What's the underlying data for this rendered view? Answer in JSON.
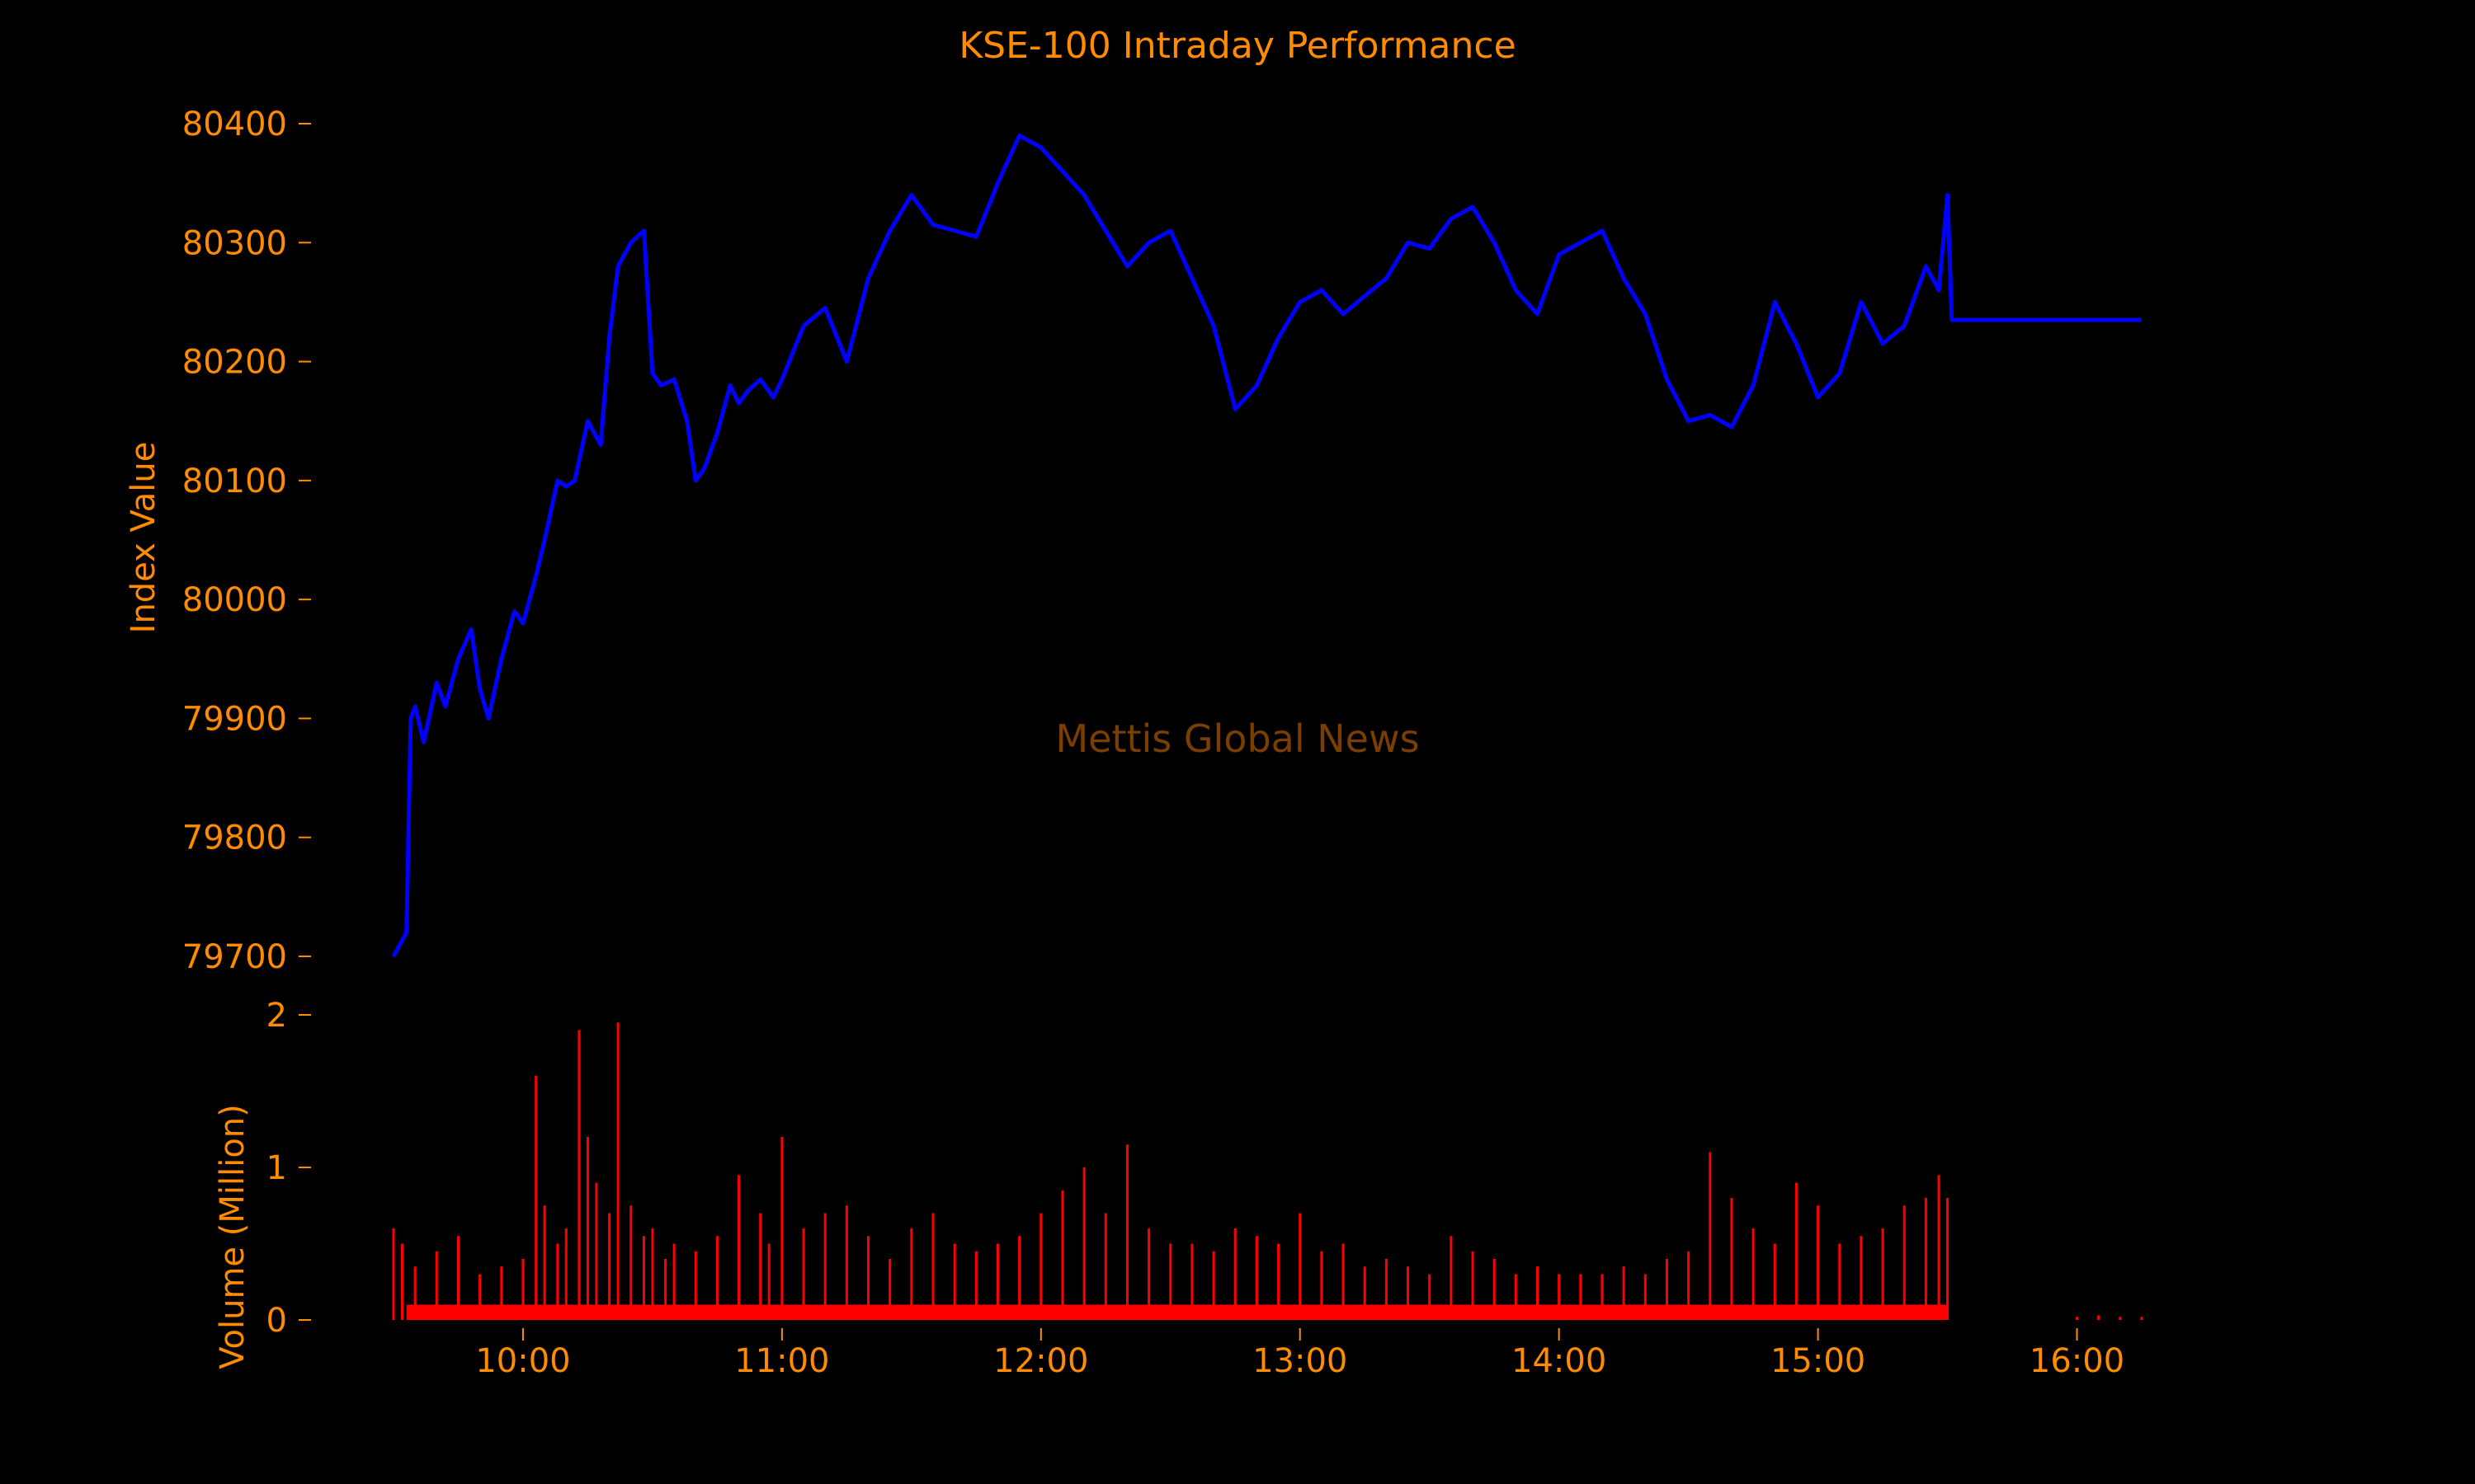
{
  "colors": {
    "background": "#000000",
    "text": "#ff8c00",
    "index_line": "#0000ff",
    "volume_bars": "#ff0000",
    "watermark": "#7a3e00"
  },
  "watermark": "Mettis Global News",
  "chart_data": [
    {
      "type": "line",
      "title": "KSE-100 Intraday Performance",
      "xlabel": "",
      "ylabel": "Index Value",
      "xlim": [
        "09:30",
        "16:15"
      ],
      "ylim": [
        79690,
        80410
      ],
      "yticks": [
        79700,
        79800,
        79900,
        80000,
        80100,
        80200,
        80300,
        80400
      ],
      "grid": false,
      "series": [
        {
          "x": [
            "09:30",
            "09:33",
            "09:34",
            "09:35",
            "09:37",
            "09:40",
            "09:42",
            "09:45",
            "09:48",
            "09:50",
            "09:52",
            "09:55",
            "09:58",
            "10:00",
            "10:03",
            "10:05",
            "10:08",
            "10:10",
            "10:12",
            "10:15",
            "10:18",
            "10:20",
            "10:22",
            "10:25",
            "10:28",
            "10:30",
            "10:32",
            "10:35",
            "10:38",
            "10:40",
            "10:42",
            "10:45",
            "10:48",
            "10:50",
            "10:52",
            "10:55",
            "10:58",
            "11:00",
            "11:05",
            "11:10",
            "11:15",
            "11:20",
            "11:25",
            "11:30",
            "11:35",
            "11:40",
            "11:45",
            "11:50",
            "11:55",
            "12:00",
            "12:05",
            "12:10",
            "12:15",
            "12:20",
            "12:25",
            "12:30",
            "12:35",
            "12:40",
            "12:45",
            "12:50",
            "12:55",
            "13:00",
            "13:05",
            "13:10",
            "13:15",
            "13:20",
            "13:25",
            "13:30",
            "13:35",
            "13:40",
            "13:45",
            "13:50",
            "13:55",
            "14:00",
            "14:05",
            "14:10",
            "14:15",
            "14:20",
            "14:25",
            "14:30",
            "14:35",
            "14:40",
            "14:45",
            "14:50",
            "14:55",
            "15:00",
            "15:05",
            "15:10",
            "15:15",
            "15:20",
            "15:25",
            "15:28",
            "15:30",
            "15:31",
            "15:40",
            "15:50",
            "16:00",
            "16:10",
            "16:15"
          ],
          "values": [
            79700,
            79720,
            79900,
            79910,
            79880,
            79930,
            79910,
            79950,
            79975,
            79925,
            79900,
            79950,
            79990,
            79980,
            80020,
            80050,
            80100,
            80095,
            80100,
            80150,
            80130,
            80220,
            80280,
            80300,
            80310,
            80190,
            80180,
            80185,
            80150,
            80100,
            80110,
            80140,
            80180,
            80165,
            80175,
            80185,
            80170,
            80185,
            80230,
            80245,
            80200,
            80270,
            80310,
            80340,
            80315,
            80310,
            80305,
            80350,
            80390,
            80380,
            80360,
            80340,
            80310,
            80280,
            80300,
            80310,
            80270,
            80230,
            80160,
            80180,
            80220,
            80250,
            80260,
            80240,
            80255,
            80270,
            80300,
            80295,
            80320,
            80330,
            80300,
            80260,
            80240,
            80290,
            80300,
            80310,
            80270,
            80240,
            80185,
            80150,
            80155,
            80145,
            80180,
            80250,
            80215,
            80170,
            80190,
            80250,
            80215,
            80230,
            80280,
            80260,
            80340,
            80235,
            80235,
            80235,
            80235,
            80235,
            80235
          ]
        }
      ]
    },
    {
      "type": "bar",
      "title": "",
      "xlabel": "",
      "ylabel": "Volume (Million)",
      "xlim": [
        "09:30",
        "16:15"
      ],
      "ylim": [
        0,
        2
      ],
      "yticks": [
        0,
        1,
        2
      ],
      "xticks": [
        "10:00",
        "11:00",
        "12:00",
        "13:00",
        "14:00",
        "15:00",
        "16:00"
      ],
      "grid": false,
      "series": [
        {
          "x": [
            "09:30",
            "09:32",
            "09:35",
            "09:40",
            "09:45",
            "09:50",
            "09:55",
            "10:00",
            "10:03",
            "10:05",
            "10:08",
            "10:10",
            "10:13",
            "10:15",
            "10:17",
            "10:20",
            "10:22",
            "10:25",
            "10:28",
            "10:30",
            "10:33",
            "10:35",
            "10:40",
            "10:45",
            "10:50",
            "10:55",
            "10:57",
            "11:00",
            "11:05",
            "11:10",
            "11:15",
            "11:20",
            "11:25",
            "11:30",
            "11:35",
            "11:40",
            "11:45",
            "11:50",
            "11:55",
            "12:00",
            "12:05",
            "12:10",
            "12:15",
            "12:20",
            "12:25",
            "12:30",
            "12:35",
            "12:40",
            "12:45",
            "12:50",
            "12:55",
            "13:00",
            "13:05",
            "13:10",
            "13:15",
            "13:20",
            "13:25",
            "13:30",
            "13:35",
            "13:40",
            "13:45",
            "13:50",
            "13:55",
            "14:00",
            "14:05",
            "14:10",
            "14:15",
            "14:20",
            "14:25",
            "14:30",
            "14:35",
            "14:40",
            "14:45",
            "14:50",
            "14:55",
            "15:00",
            "15:05",
            "15:10",
            "15:15",
            "15:20",
            "15:25",
            "15:28",
            "15:30",
            "16:00",
            "16:05",
            "16:10",
            "16:15"
          ],
          "values": [
            0.6,
            0.5,
            0.35,
            0.45,
            0.55,
            0.3,
            0.35,
            0.4,
            1.6,
            0.75,
            0.5,
            0.6,
            1.9,
            1.2,
            0.9,
            0.7,
            1.95,
            0.75,
            0.55,
            0.6,
            0.4,
            0.5,
            0.45,
            0.55,
            0.95,
            0.7,
            0.5,
            1.2,
            0.6,
            0.7,
            0.75,
            0.55,
            0.4,
            0.6,
            0.7,
            0.5,
            0.45,
            0.5,
            0.55,
            0.7,
            0.85,
            1.0,
            0.7,
            1.15,
            0.6,
            0.5,
            0.5,
            0.45,
            0.6,
            0.55,
            0.5,
            0.7,
            0.45,
            0.5,
            0.35,
            0.4,
            0.35,
            0.3,
            0.55,
            0.45,
            0.4,
            0.3,
            0.35,
            0.3,
            0.3,
            0.3,
            0.35,
            0.3,
            0.4,
            0.45,
            1.1,
            0.8,
            0.6,
            0.5,
            0.9,
            0.75,
            0.5,
            0.55,
            0.6,
            0.75,
            0.8,
            0.95,
            0.8,
            0.02,
            0.03,
            0.02,
            0.02
          ]
        }
      ]
    }
  ]
}
